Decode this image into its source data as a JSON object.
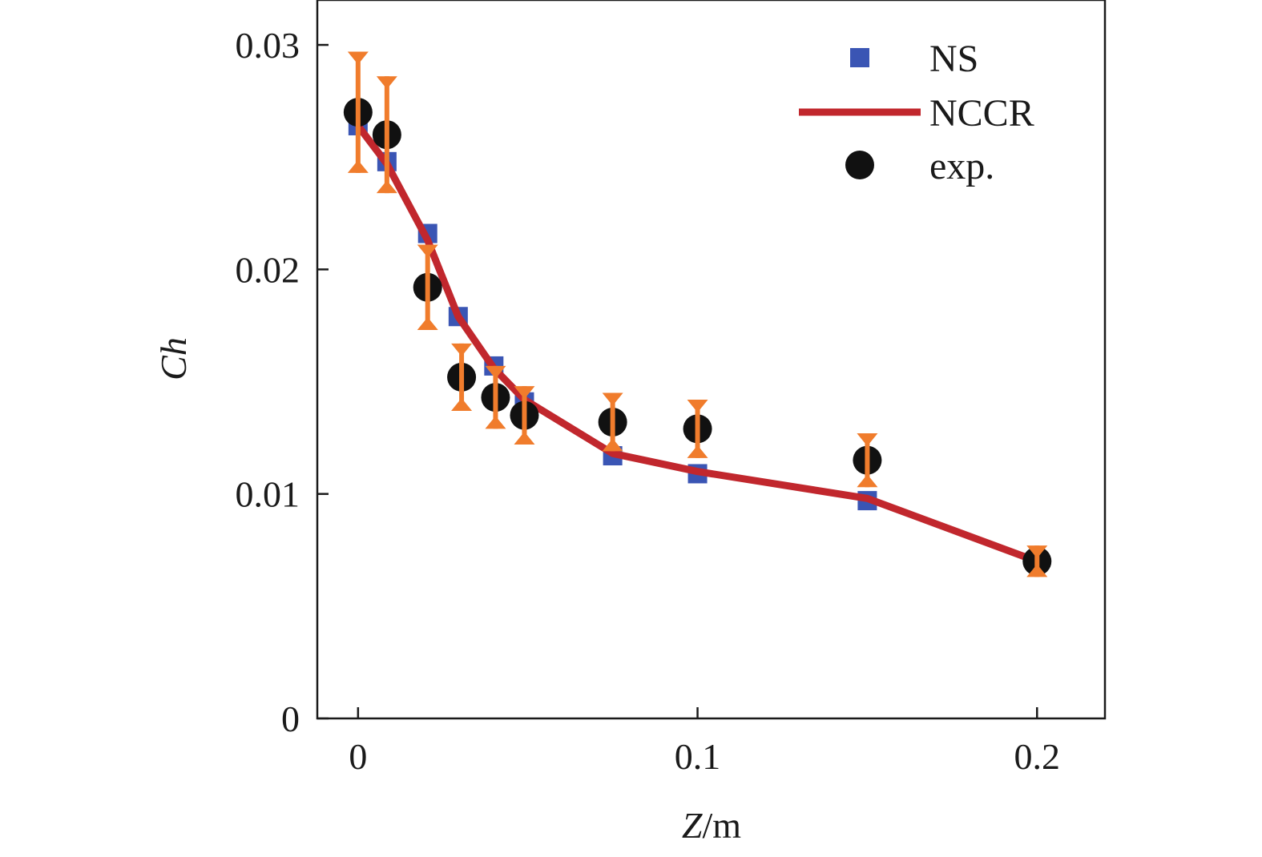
{
  "chart_data": {
    "type": "scatter",
    "xlabel_italic": "Z",
    "xlabel_rest": "/m",
    "ylabel": "Ch",
    "xlim": [
      -0.012,
      0.22
    ],
    "ylim": [
      0,
      0.032
    ],
    "xticks": [
      0,
      0.1,
      0.2
    ],
    "xtick_labels": [
      "0",
      "0.1",
      "0.2"
    ],
    "yticks": [
      0,
      0.01,
      0.02,
      0.03
    ],
    "ytick_labels": [
      "0",
      "0.01",
      "0.02",
      "0.03"
    ],
    "grid": false,
    "legend_position": "top-right",
    "series": [
      {
        "name": "NS",
        "kind": "square",
        "color": "#3a55b4",
        "x": [
          0,
          0.0085,
          0.0205,
          0.0295,
          0.04,
          0.049,
          0.075,
          0.1,
          0.15
        ],
        "y": [
          0.0264,
          0.0248,
          0.0216,
          0.0179,
          0.0157,
          0.0141,
          0.0117,
          0.0109,
          0.0097
        ]
      },
      {
        "name": "NCCR",
        "kind": "line",
        "color": "#c1272d",
        "x": [
          0,
          0.0085,
          0.0205,
          0.0295,
          0.04,
          0.049,
          0.075,
          0.1,
          0.15,
          0.2
        ],
        "y": [
          0.0264,
          0.0247,
          0.0213,
          0.0179,
          0.0156,
          0.0142,
          0.0118,
          0.011,
          0.0098,
          0.007
        ]
      },
      {
        "name": "exp.",
        "kind": "circle",
        "color": "#111111",
        "error_color": "#f07c2c",
        "x": [
          0,
          0.0085,
          0.0205,
          0.0305,
          0.0405,
          0.049,
          0.075,
          0.1,
          0.15,
          0.2
        ],
        "y": [
          0.027,
          0.026,
          0.0192,
          0.0152,
          0.0143,
          0.0135,
          0.0132,
          0.0129,
          0.0115,
          0.007
        ],
        "err": [
          0.0027,
          0.0026,
          0.0019,
          0.0015,
          0.0014,
          0.0013,
          0.0013,
          0.0013,
          0.0012,
          0.0007
        ]
      }
    ]
  }
}
